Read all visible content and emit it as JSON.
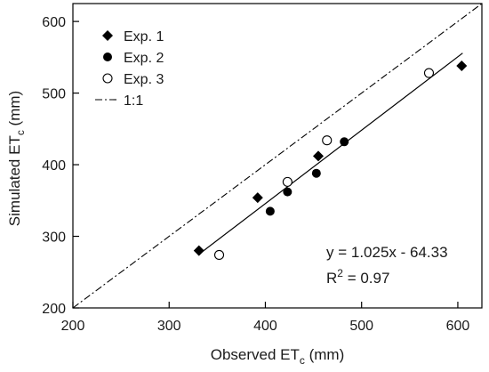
{
  "chart_data": {
    "type": "scatter",
    "xlabel": {
      "main": "Observed ET",
      "sub": "c",
      "unit": " (mm)"
    },
    "ylabel": {
      "main": "Simulated ET",
      "sub": "c",
      "unit": " (mm)"
    },
    "xlim": [
      200,
      625
    ],
    "ylim": [
      200,
      625
    ],
    "xticks": [
      200,
      300,
      400,
      500,
      600
    ],
    "yticks": [
      200,
      300,
      400,
      500,
      600
    ],
    "grid": false,
    "legend_position": "top-left",
    "series": [
      {
        "name": "Exp. 1",
        "marker": "diamond-filled",
        "color": "#000000",
        "points": [
          [
            331,
            280
          ],
          [
            392,
            354
          ],
          [
            455,
            412
          ],
          [
            604,
            538
          ]
        ]
      },
      {
        "name": "Exp. 2",
        "marker": "circle-filled",
        "color": "#000000",
        "points": [
          [
            405,
            335
          ],
          [
            423,
            362
          ],
          [
            453,
            388
          ],
          [
            482,
            432
          ]
        ]
      },
      {
        "name": "Exp. 3",
        "marker": "circle-open",
        "color": "#000000",
        "points": [
          [
            352,
            274
          ],
          [
            423,
            376
          ],
          [
            464,
            434
          ],
          [
            570,
            528
          ]
        ]
      }
    ],
    "reference_line": {
      "name": "1:1",
      "slope": 1,
      "intercept": 0,
      "style": "dash-dot"
    },
    "fit_line": {
      "slope": 1.025,
      "intercept": -64.33,
      "x_range": [
        330,
        605
      ]
    },
    "annotations": {
      "equation": "y = 1.025x - 64.33",
      "r2_prefix": "R",
      "r2_sup": "2",
      "r2_suffix": " = 0.97"
    }
  }
}
